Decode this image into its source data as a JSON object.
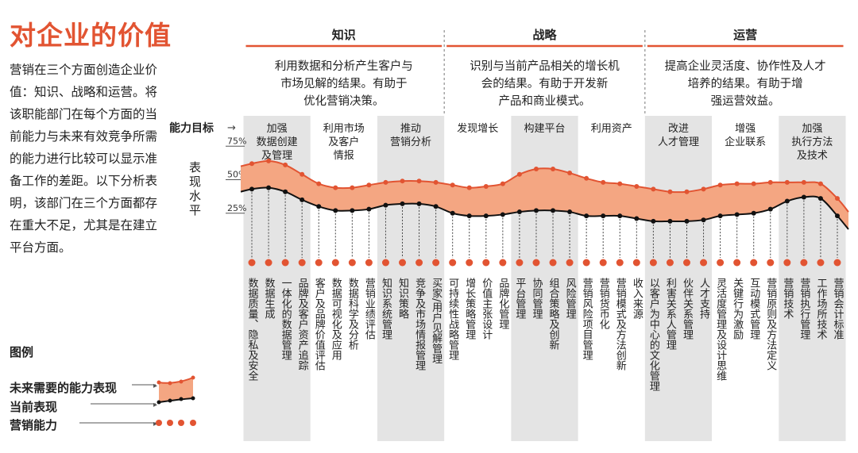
{
  "page": {
    "title": "对企业的价值",
    "intro": "营销在三个方面创造企业价值：知识、战略和运营。将该职能部门在每个方面的当前能力与未来有效竞争所需的能力进行比较可以显示准备工作的差距。以下分析表明，该部门在三个方面都存在重大不足，尤其是在建立平台方面。",
    "legend": {
      "title": "图例",
      "future": "未来需要的能力表现",
      "current": "当前表现",
      "capability": "营销能力"
    }
  },
  "colors": {
    "accent": "#e25432",
    "band_fill": "#f4a682",
    "current_line": "#111111",
    "shade": "#e4e4e4"
  },
  "chart_data": {
    "type": "area",
    "ylabel": "表现水平",
    "row_label": "能力目标",
    "yticks": [
      "75%",
      "50%",
      "25%"
    ],
    "ylim": [
      0,
      85
    ],
    "sections": [
      {
        "name": "知识",
        "desc": "利用数据和分析产生客户与市场见解的结果。有助于优化营销决策。"
      },
      {
        "name": "战略",
        "desc": "识别与当前产品相关的增长机会的结果。有助于开发新产品和商业模式。"
      },
      {
        "name": "运营",
        "desc": "提高企业灵活度、协作性及人才培养的结果。有助于增强运营效益。"
      }
    ],
    "goals": [
      {
        "label": "加强\n数据创建\n及管理",
        "shaded": true
      },
      {
        "label": "利用市场\n及客户\n情报",
        "shaded": false
      },
      {
        "label": "推动\n营销分析",
        "shaded": true
      },
      {
        "label": "发现增长",
        "shaded": false
      },
      {
        "label": "构建平台",
        "shaded": true
      },
      {
        "label": "利用资产",
        "shaded": false
      },
      {
        "label": "改进\n人才管理",
        "shaded": true
      },
      {
        "label": "增强\n企业联系",
        "shaded": false
      },
      {
        "label": "加强\n执行方法\n及技术",
        "shaded": true
      }
    ],
    "capabilities": [
      "数据质量、隐私及安全",
      "数据生成",
      "一体化的数据管理",
      "品牌及客户资产追踪",
      "客户及品牌价值评估",
      "数据可视化及应用",
      "数据科学及分析",
      "营销业绩评估",
      "知识系统管理",
      "知识策略",
      "竞争及市场情报管理",
      "买家/用户见解管理",
      "可持续性战略管理",
      "增长策略管理",
      "价值主张设计",
      "品牌化管理",
      "平台管理",
      "协同管理",
      "组合策略及创新",
      "风险管理",
      "营销风险项目管理",
      "营销货币化",
      "营销模式及方法创新",
      "收入来源",
      "以客户为中心的文化管理",
      "利害关系人管理",
      "伙伴关系管理",
      "人才支持",
      "灵活度管理及设计思维",
      "关键行为激励",
      "互动模式管理",
      "营销原则及方法定义",
      "营销技术",
      "营销执行管理",
      "工作场所技术",
      "营销会计标准"
    ],
    "series": [
      {
        "name": "未来需要的能力表现",
        "values": [
          62,
          64,
          61,
          54,
          47,
          44,
          44,
          46,
          48,
          49,
          49,
          48,
          46,
          44,
          45,
          47,
          54,
          58,
          58,
          55,
          51,
          48,
          47,
          45,
          43,
          41,
          41,
          43,
          46,
          47,
          47,
          48,
          48,
          48,
          47,
          36
        ]
      },
      {
        "name": "当前表现",
        "values": [
          43,
          44,
          41,
          35,
          30,
          27,
          27,
          28,
          31,
          32,
          32,
          30,
          25,
          23,
          23,
          24,
          26,
          27,
          27,
          26,
          23,
          23,
          23,
          21,
          19,
          19,
          19,
          20,
          23,
          24,
          25,
          28,
          34,
          37,
          36,
          23
        ]
      }
    ]
  }
}
